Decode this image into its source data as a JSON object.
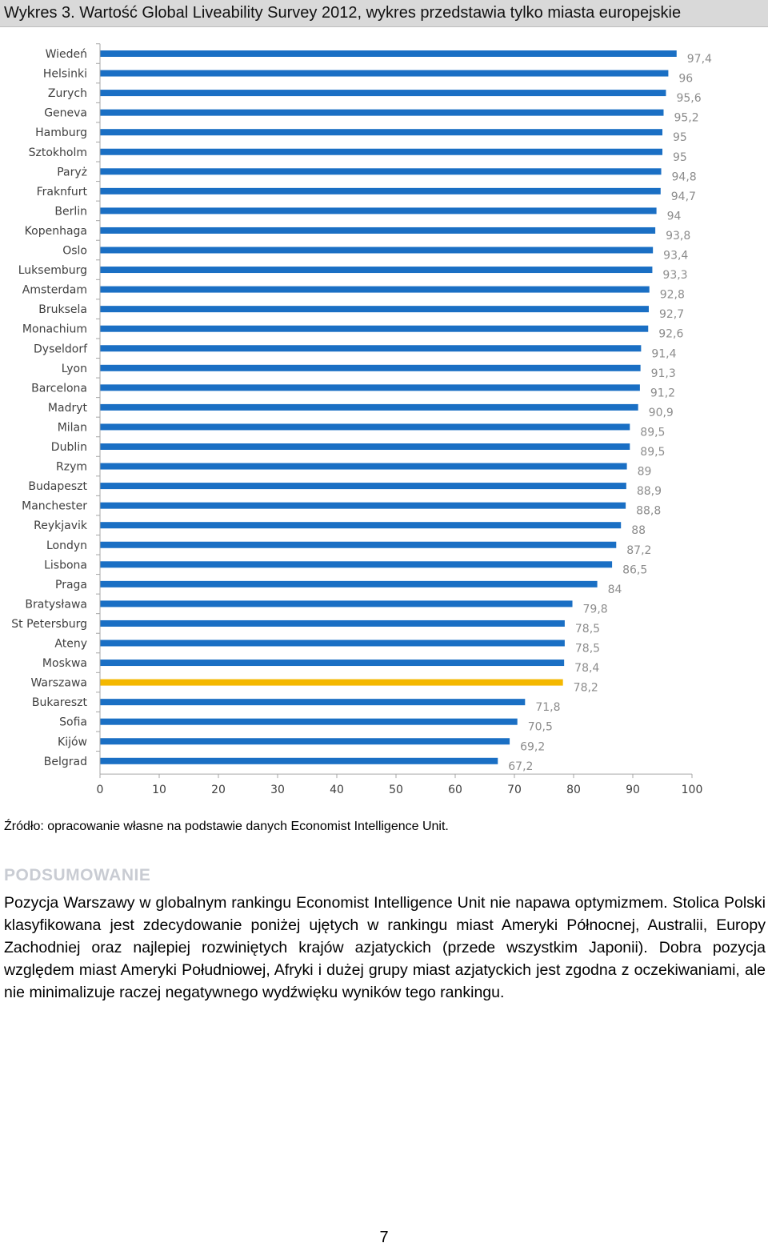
{
  "caption": "Wykres 3. Wartość Global Liveability Survey 2012, wykres przedstawia tylko miasta europejskie",
  "source": "Źródło: opracowanie własne na podstawie danych Economist Intelligence Unit.",
  "section_heading": "PODSUMOWANIE",
  "summary": "Pozycja Warszawy w globalnym rankingu Economist Intelligence Unit nie napawa optymizmem. Stolica Polski klasyfikowana jest zdecydowanie poniżej ujętych w rankingu miast Ameryki Północnej, Australii, Europy Zachodniej oraz najlepiej rozwiniętych krajów azjatyckich (przede wszystkim Japonii). Dobra pozycja względem miast Ameryki Południowej, Afryki i dużej grupy miast azjatyckich jest zgodna z oczekiwaniami, ale nie minimalizuje raczej negatywnego wydźwięku wyników tego rankingu.",
  "page_number": "7",
  "colors": {
    "bar": "#1a6fc4",
    "highlight_bar": "#f4b800",
    "value_label": "#8c8c8c",
    "axis": "#a6a6a6",
    "text": "#404040"
  },
  "chart_data": {
    "type": "bar",
    "orientation": "horizontal",
    "categories": [
      "Wiedeń",
      "Helsinki",
      "Zurych",
      "Geneva",
      "Hamburg",
      "Sztokholm",
      "Paryż",
      "Fraknfurt",
      "Berlin",
      "Kopenhaga",
      "Oslo",
      "Luksemburg",
      "Amsterdam",
      "Bruksela",
      "Monachium",
      "Dyseldorf",
      "Lyon",
      "Barcelona",
      "Madryt",
      "Milan",
      "Dublin",
      "Rzym",
      "Budapeszt",
      "Manchester",
      "Reykjavik",
      "Londyn",
      "Lisbona",
      "Praga",
      "Bratysława",
      "St Petersburg",
      "Ateny",
      "Moskwa",
      "Warszawa",
      "Bukareszt",
      "Sofia",
      "Kijów",
      "Belgrad"
    ],
    "values": [
      97.4,
      96,
      95.6,
      95.2,
      95,
      95,
      94.8,
      94.7,
      94,
      93.8,
      93.4,
      93.3,
      92.8,
      92.7,
      92.6,
      91.4,
      91.3,
      91.2,
      90.9,
      89.5,
      89.5,
      89,
      88.9,
      88.8,
      88,
      87.2,
      86.5,
      84,
      79.8,
      78.5,
      78.5,
      78.4,
      78.2,
      71.8,
      70.5,
      69.2,
      67.2
    ],
    "value_labels": [
      "97,4",
      "96",
      "95,6",
      "95,2",
      "95",
      "95",
      "94,8",
      "94,7",
      "94",
      "93,8",
      "93,4",
      "93,3",
      "92,8",
      "92,7",
      "92,6",
      "91,4",
      "91,3",
      "91,2",
      "90,9",
      "89,5",
      "89,5",
      "89",
      "88,9",
      "88,8",
      "88",
      "87,2",
      "86,5",
      "84",
      "79,8",
      "78,5",
      "78,5",
      "78,4",
      "78,2",
      "71,8",
      "70,5",
      "69,2",
      "67,2"
    ],
    "highlight_category": "Warszawa",
    "xlim": [
      0,
      100
    ],
    "x_ticks": [
      0,
      10,
      20,
      30,
      40,
      50,
      60,
      70,
      80,
      90,
      100
    ],
    "grid": false,
    "legend": "none"
  }
}
